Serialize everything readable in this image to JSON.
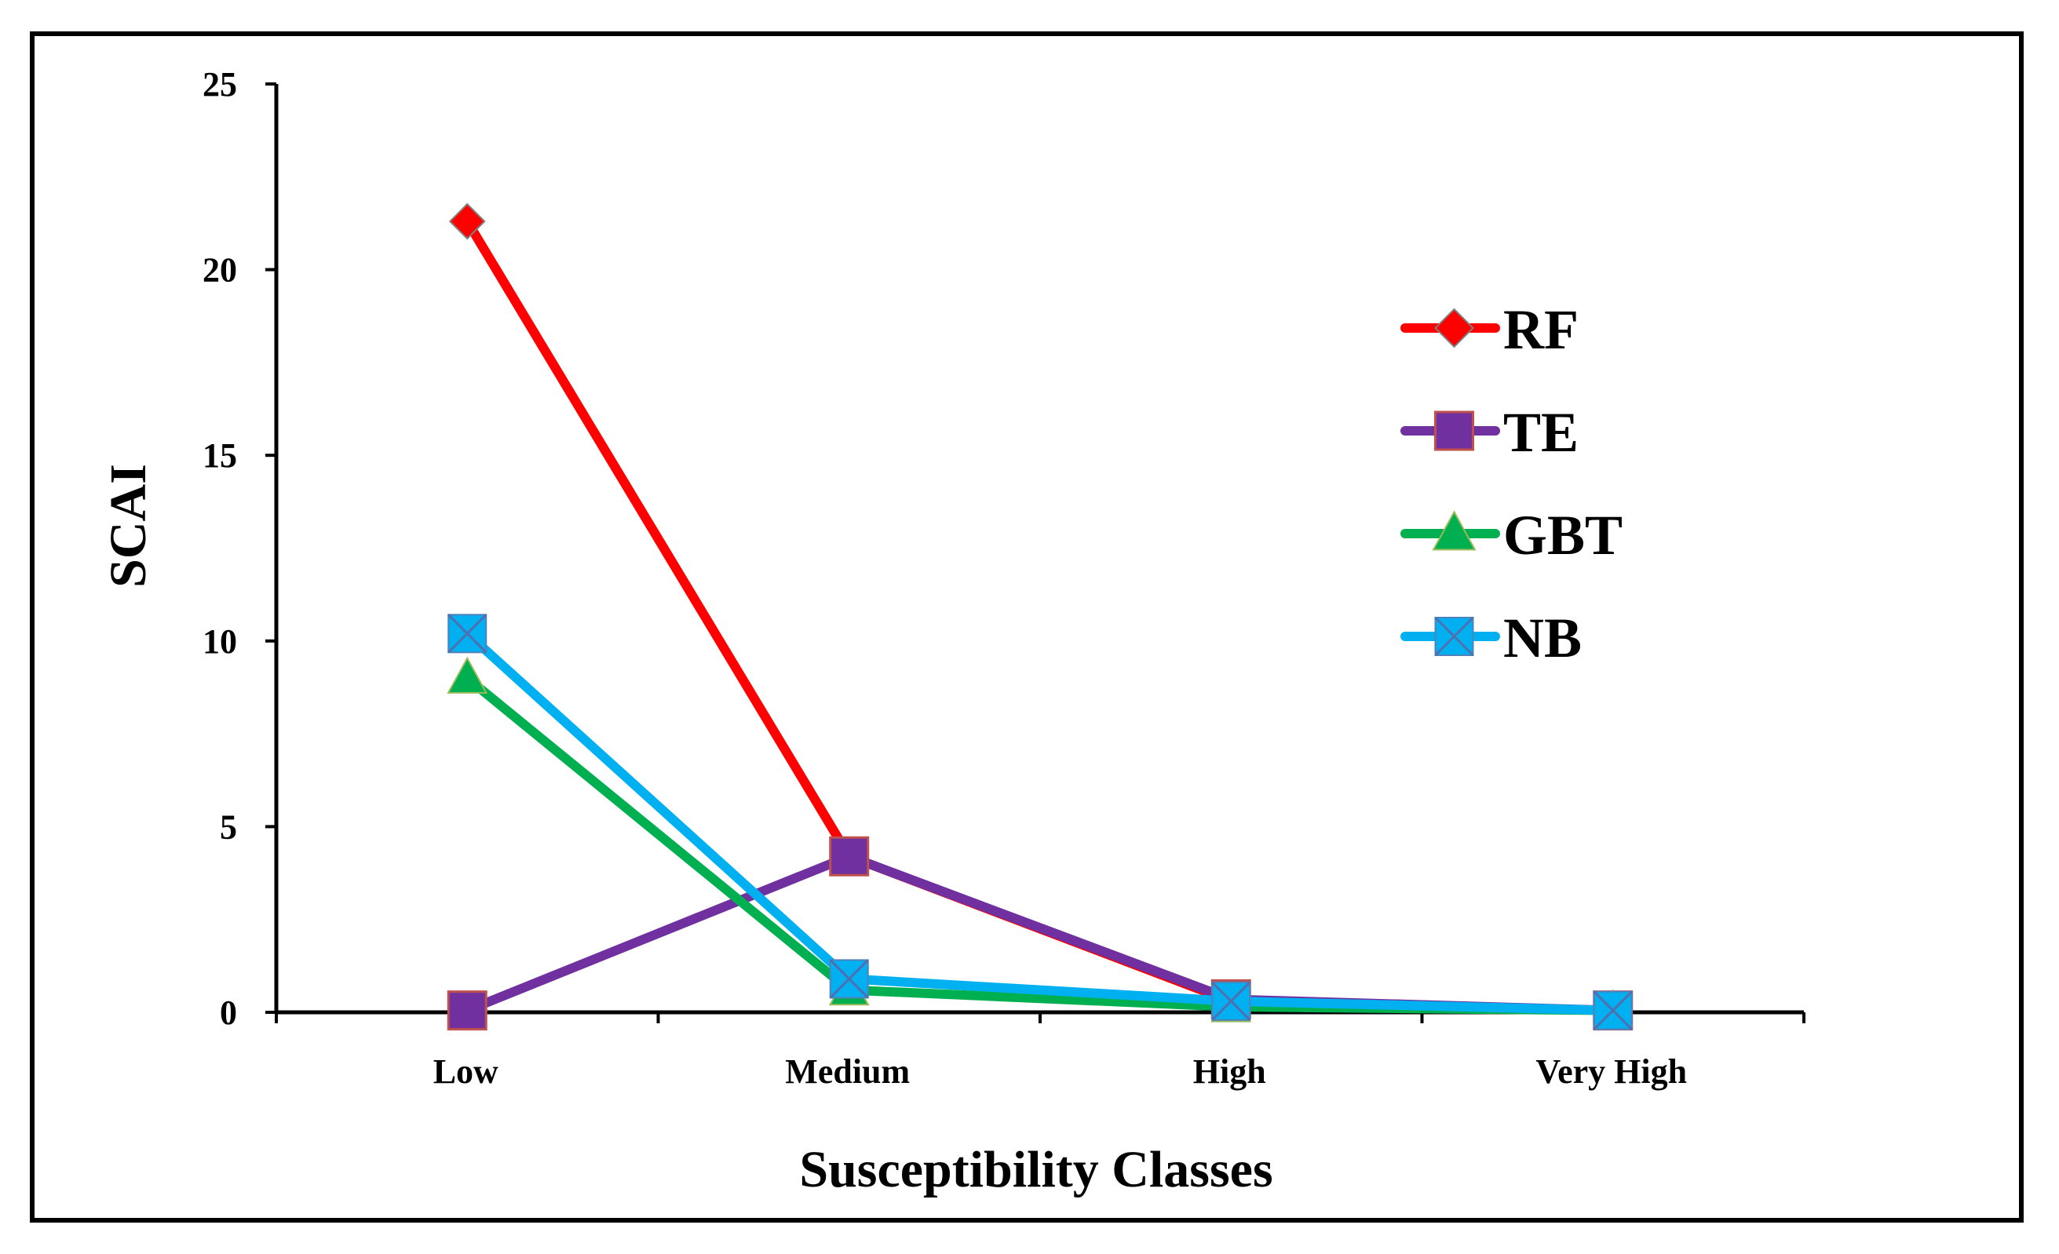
{
  "chart_data": {
    "type": "line",
    "title": "",
    "xlabel": "Susceptibility Classes",
    "ylabel": "SCAI",
    "categories": [
      "Low",
      "Medium",
      "High",
      "Very High"
    ],
    "ylim": [
      0,
      25
    ],
    "yticks": [
      "0",
      "5",
      "10",
      "15",
      "20",
      "25"
    ],
    "ytick_values": [
      0,
      5,
      10,
      15,
      20,
      25
    ],
    "grid": false,
    "legend_position": "right",
    "series": [
      {
        "name": "RF",
        "values": [
          21.3,
          4.2,
          0.3,
          0.05
        ],
        "color": "#ff0000",
        "marker": "diamond"
      },
      {
        "name": "TE",
        "values": [
          0.05,
          4.2,
          0.35,
          0.05
        ],
        "color": "#7030a0",
        "marker": "square"
      },
      {
        "name": "GBT",
        "values": [
          9.0,
          0.6,
          0.15,
          0.05
        ],
        "color": "#00b050",
        "marker": "triangle"
      },
      {
        "name": "NB",
        "values": [
          10.2,
          0.9,
          0.3,
          0.05
        ],
        "color": "#00b0f0",
        "marker": "x-square"
      }
    ]
  }
}
